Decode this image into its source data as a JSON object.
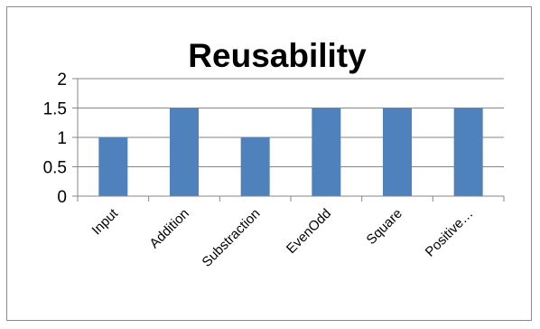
{
  "chart_data": {
    "type": "bar",
    "title": "Reusability",
    "xlabel": "",
    "ylabel": "",
    "categories": [
      "Input",
      "Addition",
      "Substraction",
      "EvenOdd",
      "Square",
      "Positive…"
    ],
    "values": [
      1,
      1.5,
      1,
      1.5,
      1.5,
      1.5
    ],
    "ylim": [
      0,
      2
    ],
    "yticks": [
      0,
      0.5,
      1,
      1.5,
      2
    ],
    "ytick_labels": [
      "0",
      "0.5",
      "1",
      "1.5",
      "2"
    ],
    "grid": true,
    "legend": "none",
    "bar_color": "#4f81bd",
    "grid_color": "#868686"
  }
}
